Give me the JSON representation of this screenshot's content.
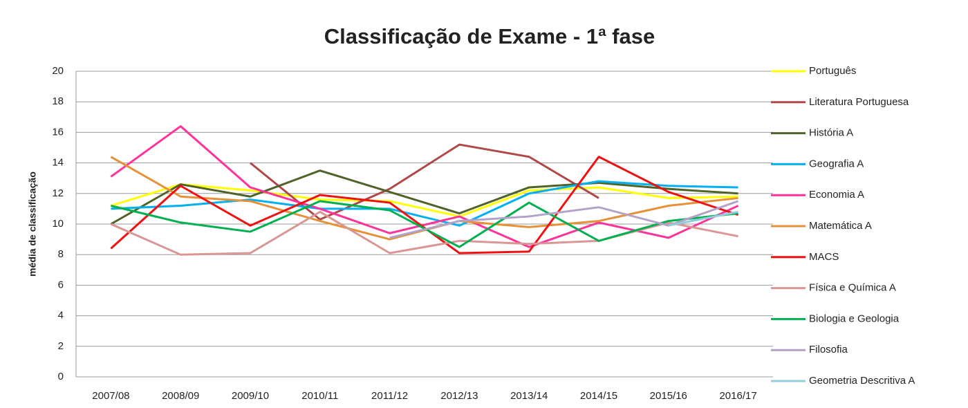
{
  "chart_data": {
    "type": "line",
    "title": "Classificação de Exame - 1ª fase",
    "y_label": "média de classificação",
    "categories": [
      "2007/08",
      "2008/09",
      "2009/10",
      "2010/11",
      "2011/12",
      "2012/13",
      "2013/14",
      "2014/15",
      "2015/16",
      "2016/17"
    ],
    "ylim": [
      0,
      20
    ],
    "yticks": [
      0,
      2,
      4,
      6,
      8,
      10,
      12,
      14,
      16,
      18,
      20
    ],
    "grid": true,
    "legend": "right",
    "series": [
      {
        "name": "Português",
        "color": "#ffff00",
        "values": [
          11.2,
          12.6,
          12.2,
          11.6,
          11.5,
          10.5,
          12.2,
          12.4,
          11.7,
          11.8
        ]
      },
      {
        "name": "Literatura Portuguesa",
        "color": "#b04848",
        "values": [
          null,
          null,
          14.0,
          10.3,
          12.3,
          15.2,
          14.4,
          11.7,
          null,
          null
        ]
      },
      {
        "name": "História A",
        "color": "#4f6228",
        "values": [
          10.0,
          12.6,
          11.8,
          13.5,
          12.1,
          10.7,
          12.4,
          12.7,
          12.3,
          12.0
        ]
      },
      {
        "name": "Geografia A",
        "color": "#00b0f0",
        "values": [
          11.0,
          11.2,
          11.6,
          11.0,
          11.0,
          9.9,
          12.0,
          12.8,
          12.5,
          12.4
        ]
      },
      {
        "name": "Economia A",
        "color": "#ff3399",
        "values": [
          13.1,
          16.4,
          12.4,
          11.0,
          9.4,
          10.5,
          8.5,
          10.1,
          9.1,
          11.2
        ]
      },
      {
        "name": "Matemática A",
        "color": "#e69138",
        "values": [
          14.4,
          11.8,
          11.5,
          10.2,
          9.0,
          10.2,
          9.8,
          10.2,
          11.2,
          11.7
        ]
      },
      {
        "name": "MACS",
        "color": "#ee1111",
        "values": [
          8.4,
          12.5,
          9.9,
          11.9,
          11.4,
          8.1,
          8.2,
          14.4,
          12.1,
          10.6
        ]
      },
      {
        "name": "Física e Química A",
        "color": "#d99694",
        "values": [
          10.0,
          8.0,
          8.1,
          10.8,
          8.1,
          8.9,
          8.7,
          8.9,
          10.1,
          9.2
        ]
      },
      {
        "name": "Biologia e Geologia",
        "color": "#00b050",
        "values": [
          11.2,
          10.1,
          9.5,
          11.5,
          10.9,
          8.5,
          11.4,
          8.9,
          10.2,
          10.7
        ]
      },
      {
        "name": "Filosofia",
        "color": "#b3a2c7",
        "values": [
          null,
          null,
          null,
          null,
          9.1,
          10.2,
          10.5,
          11.1,
          9.9,
          11.5
        ]
      },
      {
        "name": "Geometria Descritiva A",
        "color": "#93cddd",
        "values": [
          null,
          null,
          null,
          null,
          null,
          null,
          null,
          null,
          9.9,
          10.8
        ]
      }
    ]
  }
}
